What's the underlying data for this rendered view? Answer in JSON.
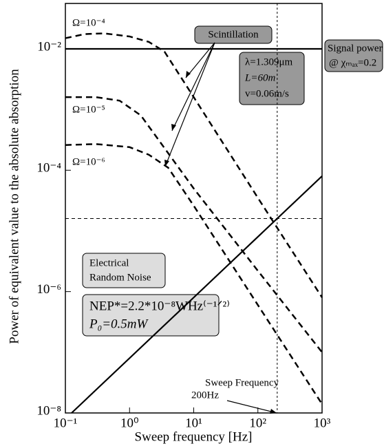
{
  "chart_data": {
    "type": "line",
    "xlabel": "Sweep frequency [Hz]",
    "ylabel": "Power of equivalent value to the absolute absorption",
    "xlog": true,
    "ylog": true,
    "xlim": [
      0.1,
      1000
    ],
    "ylim": [
      1e-08,
      0.056
    ],
    "xticks": [
      {
        "value": 0.1,
        "label": "10⁻¹"
      },
      {
        "value": 1,
        "label": "10⁰"
      },
      {
        "value": 10,
        "label": "10¹"
      },
      {
        "value": 100,
        "label": "10²"
      },
      {
        "value": 1000,
        "label": "10³"
      }
    ],
    "yticks": [
      {
        "value": 1e-08,
        "label": "10⁻⁸"
      },
      {
        "value": 1e-06,
        "label": "10⁻⁶"
      },
      {
        "value": 0.0001,
        "label": "10⁻⁴"
      },
      {
        "value": 0.01,
        "label": "10⁻²"
      }
    ],
    "series": [
      {
        "name": "Ω=10⁻⁴",
        "color": "#000000",
        "style": "dashed",
        "x": [
          0.1,
          0.2,
          0.4,
          1,
          2,
          3.5,
          10,
          100,
          1000
        ],
        "values": [
          0.015,
          0.0175,
          0.018,
          0.016,
          0.013,
          0.009,
          0.0016,
          3.5e-05,
          8e-07
        ]
      },
      {
        "name": "Ω=10⁻⁵",
        "color": "#000000",
        "style": "dashed",
        "x": [
          0.1,
          0.3,
          0.7,
          1.5,
          10,
          100,
          1000
        ],
        "values": [
          0.0016,
          0.0016,
          0.0014,
          0.0008,
          5e-05,
          2.2e-06,
          1e-07
        ]
      },
      {
        "name": "Ω=10⁻⁶",
        "color": "#000000",
        "style": "dashed",
        "x": [
          0.1,
          0.3,
          1,
          2,
          4,
          10,
          100,
          1000
        ],
        "values": [
          0.00026,
          0.00027,
          0.00024,
          0.00018,
          0.00011,
          2.6e-05,
          6e-07,
          1.4e-08
        ]
      },
      {
        "color": "#000000",
        "style": "solid",
        "x": [
          0.1,
          1000
        ],
        "values": [
          0.01,
          0.01
        ]
      },
      {
        "color": "#000000",
        "style": "solid",
        "x": [
          0.125,
          1000
        ],
        "values": [
          1e-08,
          8e-05
        ]
      }
    ],
    "reference_lines": {
      "x": 200,
      "y": 1.6e-05
    },
    "annotations": {
      "scintillation": "Scintillation",
      "params": [
        "λ=1.309μm",
        "L=60m",
        "v=0.06m/s"
      ],
      "signal": [
        "Signal power",
        "@ χₘₐₓ=0.2"
      ],
      "noise": [
        "Electrical",
        "Random Noise"
      ],
      "nep": [
        "NEP*=2.2*10⁻⁸WHz⁽⁻¹ᐟ²⁾",
        "P₀=0.5mW"
      ],
      "sweep": [
        "Sweep Frequency",
        "200Hz"
      ]
    }
  }
}
